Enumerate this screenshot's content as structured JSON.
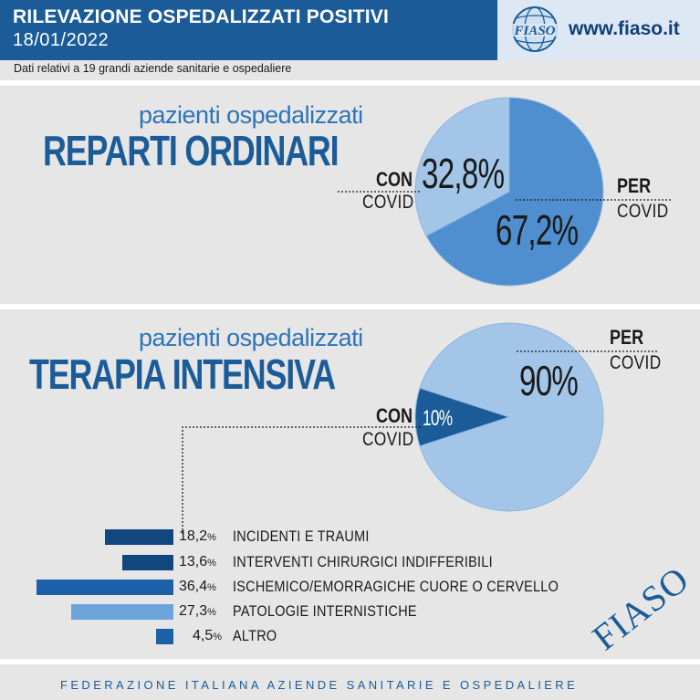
{
  "header": {
    "title": "RILEVAZIONE OSPEDALIZZATI POSITIVI",
    "date": "18/01/2022",
    "logo_text": "FIASO",
    "url": "www.fiaso.it"
  },
  "subtitle": "Dati relativi a 19 grandi aziende sanitarie e ospedaliere",
  "colors": {
    "header_blue": "#1b5c98",
    "pie_light": "#a3c6e8",
    "pie_medium": "#4f8fd0",
    "bar_dark": "#12467f",
    "bar_medium": "#1c60a8",
    "bar_bright": "#2e78c8",
    "bar_light": "#6ea4dc"
  },
  "section_ordinari": {
    "small_title": "pazienti ospedalizzati",
    "big_title": "REPARTI ORDINARI",
    "con_bold": "CON",
    "con_light": "COVID",
    "per_bold": "PER",
    "per_light": "COVID"
  },
  "section_intensiva": {
    "small_title": "pazienti ospedalizzati",
    "big_title": "TERAPIA INTENSIVA",
    "con_bold": "CON",
    "con_light": "COVID",
    "per_bold": "PER",
    "per_light": "COVID"
  },
  "chart_data": [
    {
      "type": "pie",
      "title": "REPARTI ORDINARI",
      "slices": [
        {
          "label": "CON COVID",
          "value": 32.8,
          "display": "32,8%",
          "color": "#a3c6e8"
        },
        {
          "label": "PER COVID",
          "value": 67.2,
          "display": "67,2%",
          "color": "#4f8fd0"
        }
      ]
    },
    {
      "type": "pie",
      "title": "TERAPIA INTENSIVA",
      "slices": [
        {
          "label": "CON COVID",
          "value": 10,
          "display": "10%",
          "color": "#1b5c98"
        },
        {
          "label": "PER COVID",
          "value": 90,
          "display": "90%",
          "color": "#a3c6e8"
        }
      ]
    },
    {
      "type": "bar",
      "orientation": "horizontal",
      "categories": [
        "INCIDENTI E TRAUMI",
        "INTERVENTI CHIRURGICI INDIFFERIBILI",
        "ISCHEMICO/EMORRAGICHE CUORE O CERVELLO",
        "PATOLOGIE INTERNISTICHE",
        "ALTRO"
      ],
      "values": [
        18.2,
        13.6,
        36.4,
        27.3,
        4.5
      ],
      "value_labels": [
        "18,2",
        "13,6",
        "36,4",
        "27,3",
        "4,5"
      ],
      "unit": "%",
      "bar_colors": [
        "#12467f",
        "#12467f",
        "#1c60a8",
        "#6ea4dc",
        "#1c60a8"
      ]
    }
  ],
  "footer": "FEDERAZIONE ITALIANA AZIENDE SANITARIE E OSPEDALIERE",
  "watermark": "FIASO"
}
